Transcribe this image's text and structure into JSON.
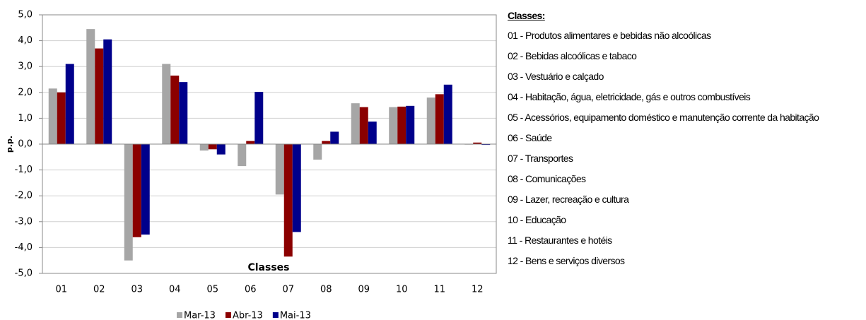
{
  "chart_data": {
    "type": "bar",
    "y_label": "p.p.",
    "x_label": "Classes",
    "categories": [
      "01",
      "02",
      "03",
      "04",
      "05",
      "06",
      "07",
      "08",
      "09",
      "10",
      "11",
      "12"
    ],
    "series": [
      {
        "name": "Mar-13",
        "color": "#a6a6a6",
        "values": [
          2.15,
          4.45,
          -4.5,
          3.1,
          -0.25,
          -0.85,
          -1.95,
          -0.6,
          1.58,
          1.43,
          1.8,
          -0.02
        ]
      },
      {
        "name": "Abr-13",
        "color": "#8b0000",
        "values": [
          2.0,
          3.7,
          -3.6,
          2.65,
          -0.2,
          0.12,
          -4.35,
          0.12,
          1.43,
          1.45,
          1.93,
          0.06
        ]
      },
      {
        "name": "Mai-13",
        "color": "#00008b",
        "values": [
          3.1,
          4.05,
          -3.5,
          2.4,
          -0.4,
          2.02,
          -3.4,
          0.48,
          0.87,
          1.48,
          2.3,
          -0.03
        ]
      }
    ],
    "ylim": [
      -5,
      5
    ],
    "yticks": [
      {
        "value": -5,
        "label": "-5,0"
      },
      {
        "value": -4,
        "label": "-4,0"
      },
      {
        "value": -3,
        "label": "-3,0"
      },
      {
        "value": -2,
        "label": "-2,0"
      },
      {
        "value": -1,
        "label": "-1,0"
      },
      {
        "value": 0,
        "label": "0,0"
      },
      {
        "value": 1,
        "label": "1,0"
      },
      {
        "value": 2,
        "label": "2,0"
      },
      {
        "value": 3,
        "label": "3,0"
      },
      {
        "value": 4,
        "label": "4,0"
      },
      {
        "value": 5,
        "label": "5,0"
      }
    ],
    "grid": true
  },
  "side_panel": {
    "title": "Classes:",
    "items": [
      "01 - Produtos alimentares e bebidas não alcoólicas",
      "02 - Bebidas alcoólicas e tabaco",
      "03 - Vestuário e calçado",
      "04 - Habitação, água, eletricidade, gás e outros combustíveis",
      "05 - Acessórios, equipamento doméstico e manutenção corrente da habitação",
      "06 - Saúde",
      "07 - Transportes",
      "08 - Comunicações",
      "09 - Lazer, recreação e cultura",
      "10 - Educação",
      "11 - Restaurantes e hotéis",
      "12 - Bens e serviços diversos"
    ]
  }
}
